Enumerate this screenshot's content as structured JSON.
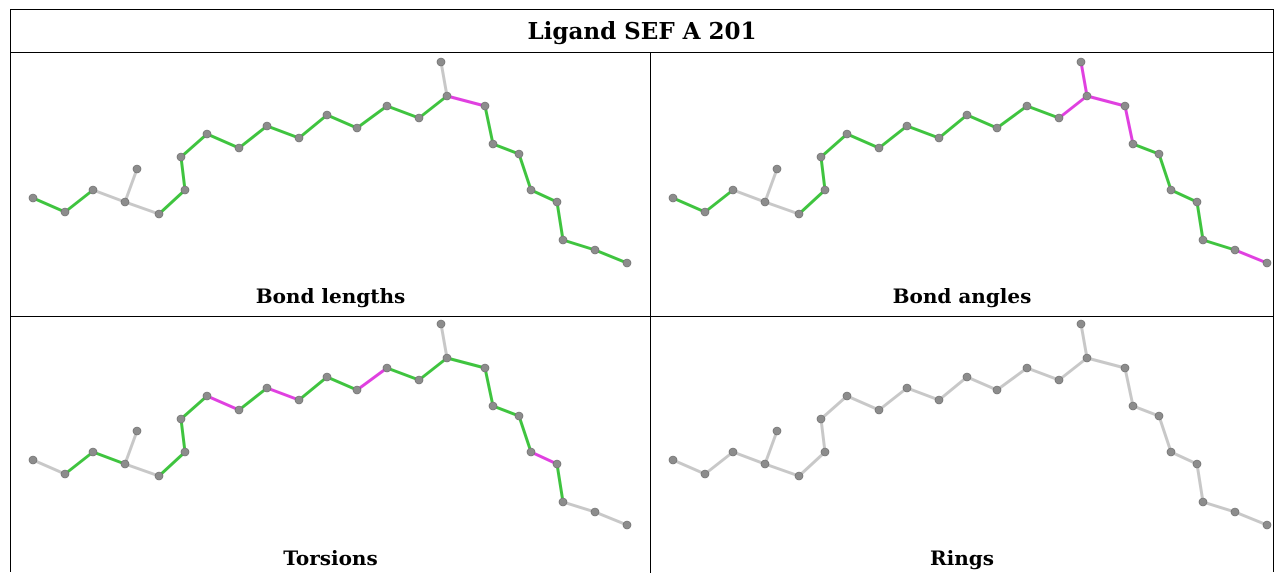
{
  "title": "Ligand SEF A 201",
  "colors": {
    "ok_bond": "#3fc43f",
    "outlier_bond": "#e040e0",
    "neutral_bond": "#c8c8c8",
    "atom": "#8c8c8c",
    "border": "#000000"
  },
  "panels": [
    {
      "caption": "Bond lengths",
      "bond_states": [
        "ok",
        "ok",
        "n",
        "n",
        "n",
        "ok",
        "ok",
        "ok",
        "ok",
        "ok",
        "ok",
        "ok",
        "ok",
        "ok",
        "ok",
        "ok",
        "n",
        "outlier",
        "ok",
        "ok",
        "ok",
        "ok",
        "ok",
        "ok",
        "ok",
        "outlier"
      ]
    },
    {
      "caption": "Bond angles",
      "bond_states": [
        "ok",
        "ok",
        "n",
        "n",
        "n",
        "ok",
        "ok",
        "ok",
        "ok",
        "ok",
        "ok",
        "ok",
        "ok",
        "ok",
        "ok",
        "outlier",
        "outlier",
        "outlier",
        "outlier",
        "ok",
        "ok",
        "ok",
        "ok",
        "ok",
        "outlier",
        "outlier"
      ]
    },
    {
      "caption": "Torsions",
      "bond_states": [
        "n",
        "ok",
        "ok",
        "n",
        "n",
        "ok",
        "ok",
        "ok",
        "outlier",
        "ok",
        "outlier",
        "ok",
        "ok",
        "outlier",
        "ok",
        "ok",
        "n",
        "ok",
        "ok",
        "ok",
        "ok",
        "outlier",
        "ok",
        "n",
        "n",
        "n"
      ]
    },
    {
      "caption": "Rings",
      "bond_states": [
        "n",
        "n",
        "n",
        "n",
        "n",
        "n",
        "n",
        "n",
        "n",
        "n",
        "n",
        "n",
        "n",
        "n",
        "n",
        "n",
        "n",
        "n",
        "n",
        "n",
        "n",
        "n",
        "n",
        "n",
        "n",
        "n"
      ]
    }
  ]
}
